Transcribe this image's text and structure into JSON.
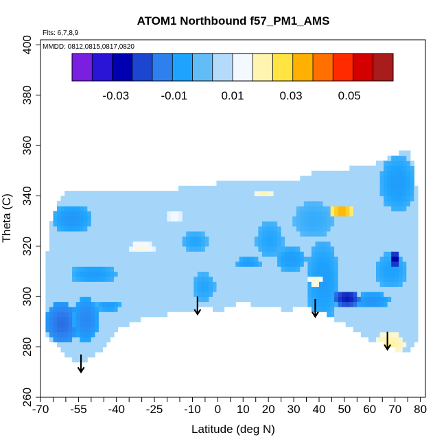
{
  "chart_data": {
    "type": "heatmap",
    "title": "ATOM1 Northbound f57_PM1_AMS",
    "subtitle_flights": "Flts: 6,7,8,9",
    "subtitle_dates": "MMDD: 0812,0815,0817,0820",
    "xlabel": "Latitude (deg N)",
    "ylabel": "Theta (C)",
    "xlim": [
      -70,
      82
    ],
    "ylim": [
      260,
      402
    ],
    "xticks": [
      -70,
      -55,
      -40,
      -25,
      -10,
      0,
      10,
      20,
      30,
      40,
      50,
      60,
      70,
      80
    ],
    "xticks_minor": [
      -65,
      -60,
      -50,
      -45,
      -35,
      -30,
      -20,
      -15,
      -5,
      5,
      15,
      25,
      35,
      45,
      55,
      65,
      75
    ],
    "yticks": [
      260,
      280,
      300,
      320,
      340,
      360,
      380,
      400
    ],
    "grid": false,
    "colorbar": {
      "placement": "top-inside",
      "range": [
        -0.045,
        0.065
      ],
      "tick_values": [
        -0.03,
        -0.01,
        0.01,
        0.03,
        0.05
      ],
      "tick_labels": [
        "-0.03",
        "-0.01",
        "0.01",
        "0.03",
        "0.05"
      ],
      "colors": [
        "#7a1fe0",
        "#2a14d6",
        "#0000b0",
        "#1c46cf",
        "#2f80ef",
        "#1ea4ff",
        "#62bdf7",
        "#b4dcfa",
        "#f3f9ff",
        "#fff5b0",
        "#ffe442",
        "#ffb000",
        "#ff7000",
        "#ff2a00",
        "#d40000",
        "#a81c1c"
      ]
    },
    "coverage": {
      "lat": [
        -68,
        -66,
        -63,
        -60,
        -55,
        -50,
        -45,
        -40,
        -35,
        -30,
        -25,
        -20,
        -15,
        -10,
        -5,
        0,
        5,
        10,
        15,
        20,
        25,
        30,
        35,
        40,
        45,
        50,
        55,
        60,
        65,
        70,
        73,
        76,
        79
      ],
      "theta_bottom": [
        286,
        283,
        280,
        277,
        273,
        276,
        280,
        287,
        289,
        291,
        293,
        293,
        294,
        294,
        296,
        294,
        296,
        298,
        296,
        296,
        295,
        295,
        296,
        294,
        292,
        289,
        286,
        283,
        281,
        279,
        277,
        278,
        284
      ],
      "theta_top": [
        312,
        330,
        338,
        342,
        342,
        342,
        342,
        342,
        342,
        342,
        341,
        342,
        343,
        344,
        344,
        345,
        345,
        346,
        346,
        346,
        346,
        346,
        348,
        350,
        350,
        350,
        352,
        352,
        354,
        356,
        358,
        358,
        340
      ]
    },
    "values": {
      "background": 0.005,
      "patches": [
        {
          "lat": [
            -68,
            -55
          ],
          "theta": [
            281,
            298
          ],
          "value": -0.018
        },
        {
          "lat": [
            -57,
            -47
          ],
          "theta": [
            282,
            300
          ],
          "value": -0.014
        },
        {
          "lat": [
            -65,
            -50
          ],
          "theta": [
            325,
            337
          ],
          "value": -0.011
        },
        {
          "lat": [
            -58,
            -40
          ],
          "theta": [
            305,
            313
          ],
          "value": -0.01
        },
        {
          "lat": [
            -48,
            -38
          ],
          "theta": [
            294,
            299
          ],
          "value": -0.01
        },
        {
          "lat": [
            -10,
            -1
          ],
          "theta": [
            298,
            310
          ],
          "value": -0.008
        },
        {
          "lat": [
            -14,
            -4
          ],
          "theta": [
            318,
            326
          ],
          "value": -0.008
        },
        {
          "lat": [
            7,
            17
          ],
          "theta": [
            311,
            316
          ],
          "value": -0.01
        },
        {
          "lat": [
            15,
            26
          ],
          "theta": [
            315,
            330
          ],
          "value": -0.008
        },
        {
          "lat": [
            23,
            35
          ],
          "theta": [
            310,
            320
          ],
          "value": -0.01
        },
        {
          "lat": [
            35,
            48
          ],
          "theta": [
            290,
            322
          ],
          "value": -0.01
        },
        {
          "lat": [
            46,
            56
          ],
          "theta": [
            296,
            303
          ],
          "value": -0.028
        },
        {
          "lat": [
            54,
            68
          ],
          "theta": [
            295,
            302
          ],
          "value": -0.012
        },
        {
          "lat": [
            62,
            75
          ],
          "theta": [
            303,
            318
          ],
          "value": -0.009
        },
        {
          "lat": [
            64,
            78
          ],
          "theta": [
            334,
            356
          ],
          "value": -0.01
        },
        {
          "lat": [
            30,
            46
          ],
          "theta": [
            323,
            338
          ],
          "value": -0.006
        },
        {
          "lat": [
            45,
            53
          ],
          "theta": [
            331,
            337
          ],
          "value": 0.036
        },
        {
          "lat": [
            15,
            22
          ],
          "theta": [
            339,
            343
          ],
          "value": 0.02
        },
        {
          "lat": [
            -35,
            -25
          ],
          "theta": [
            317,
            322
          ],
          "value": 0.016
        },
        {
          "lat": [
            -20,
            -14
          ],
          "theta": [
            329,
            335
          ],
          "value": 0.014
        },
        {
          "lat": [
            62,
            74
          ],
          "theta": [
            277,
            286
          ],
          "value": 0.022
        },
        {
          "lat": [
            36,
            41
          ],
          "theta": [
            304,
            309
          ],
          "value": 0.018
        },
        {
          "lat": [
            68,
            72
          ],
          "theta": [
            312,
            318
          ],
          "value": -0.032
        }
      ]
    },
    "annotations": [
      {
        "type": "arrow-down",
        "lat": -54,
        "theta_from": 277,
        "theta_to": 270
      },
      {
        "type": "arrow-down",
        "lat": -8,
        "theta_from": 300,
        "theta_to": 293
      },
      {
        "type": "arrow-down",
        "lat": 38.5,
        "theta_from": 299,
        "theta_to": 292
      },
      {
        "type": "arrow-down",
        "lat": 67,
        "theta_from": 286,
        "theta_to": 279
      }
    ]
  }
}
